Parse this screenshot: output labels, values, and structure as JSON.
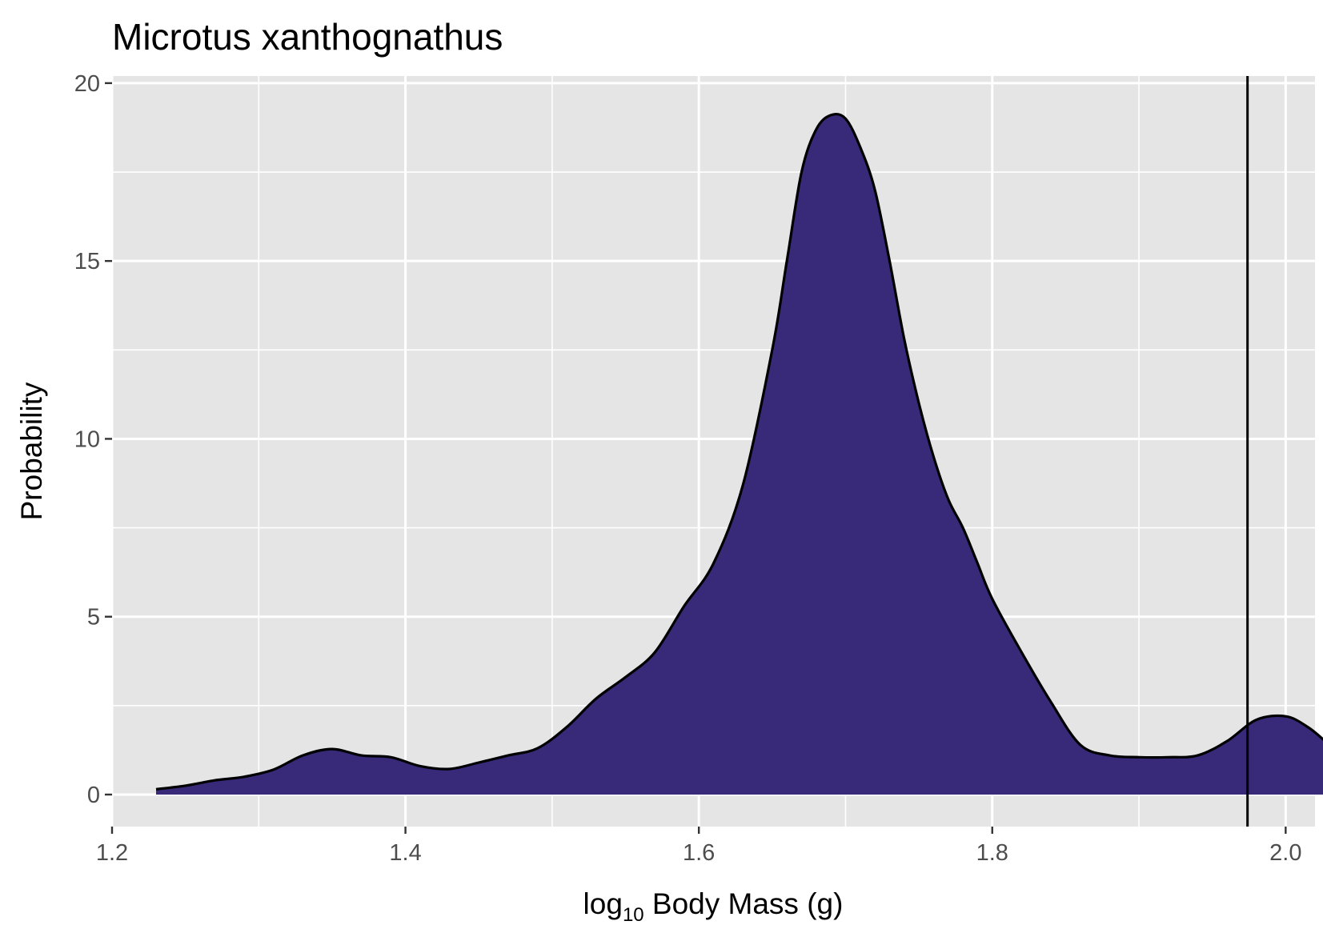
{
  "chart_data": {
    "type": "area",
    "title": "Microtus xanthognathus",
    "xlabel_main": "log",
    "xlabel_sub": "10",
    "xlabel_rest": " Body Mass (g)",
    "ylabel": "Probability",
    "xlim": [
      1.2,
      2.02
    ],
    "ylim": [
      -0.9,
      20.2
    ],
    "x_ticks": [
      1.2,
      1.4,
      1.6,
      1.8,
      2.0
    ],
    "x_tick_labels": [
      "1.2",
      "1.4",
      "1.6",
      "1.8",
      "2.0"
    ],
    "y_ticks": [
      0,
      5,
      10,
      15,
      20
    ],
    "y_tick_labels": [
      "0",
      "5",
      "10",
      "15",
      "20"
    ],
    "x_minor": [
      1.3,
      1.5,
      1.7,
      1.9
    ],
    "y_minor": [
      2.5,
      7.5,
      12.5,
      17.5
    ],
    "grid": true,
    "fill_color": "#382a78",
    "line_color": "#000000",
    "panel_color": "#e5e5e5",
    "vline_x": 1.974,
    "x": [
      1.23,
      1.25,
      1.27,
      1.29,
      1.31,
      1.33,
      1.35,
      1.37,
      1.39,
      1.41,
      1.43,
      1.45,
      1.47,
      1.49,
      1.51,
      1.53,
      1.55,
      1.57,
      1.59,
      1.61,
      1.63,
      1.65,
      1.66,
      1.67,
      1.68,
      1.69,
      1.7,
      1.71,
      1.72,
      1.73,
      1.74,
      1.75,
      1.76,
      1.77,
      1.78,
      1.79,
      1.8,
      1.82,
      1.84,
      1.86,
      1.88,
      1.9,
      1.92,
      1.94,
      1.96,
      1.98,
      2.0,
      2.015,
      2.027
    ],
    "values": [
      0.15,
      0.25,
      0.4,
      0.5,
      0.7,
      1.1,
      1.28,
      1.1,
      1.05,
      0.8,
      0.72,
      0.9,
      1.1,
      1.3,
      1.9,
      2.7,
      3.3,
      4.0,
      5.3,
      6.5,
      8.7,
      12.5,
      15.0,
      17.5,
      18.7,
      19.1,
      19.0,
      18.2,
      17.0,
      15.0,
      12.8,
      11.0,
      9.5,
      8.3,
      7.5,
      6.5,
      5.5,
      4.0,
      2.6,
      1.4,
      1.1,
      1.05,
      1.05,
      1.1,
      1.5,
      2.1,
      2.2,
      1.9,
      1.5
    ]
  }
}
